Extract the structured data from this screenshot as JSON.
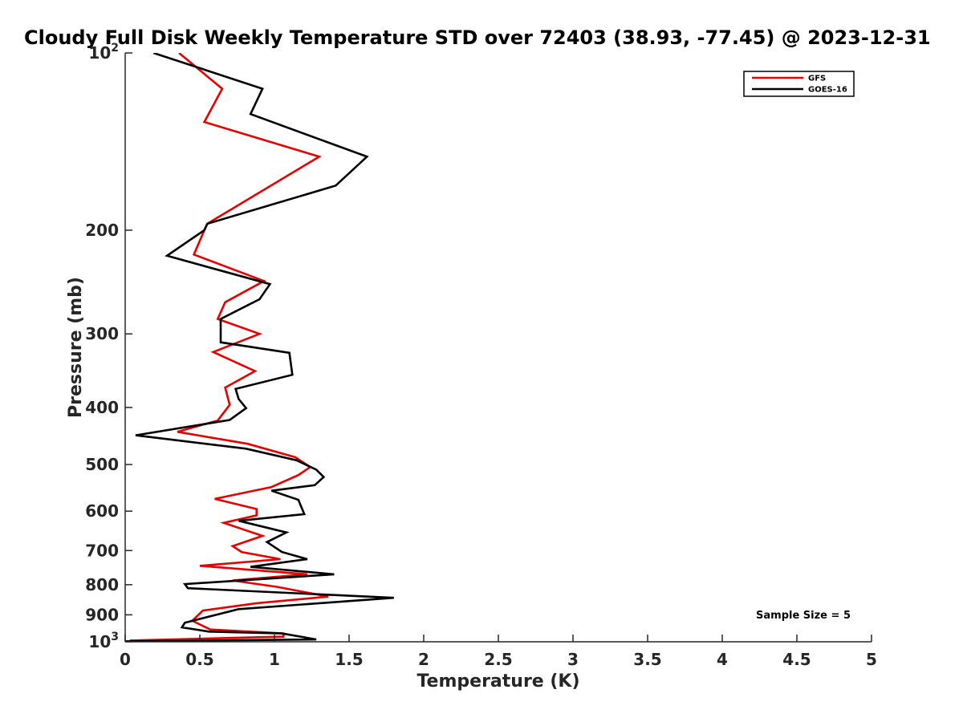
{
  "chart_data": {
    "type": "line",
    "title": "Cloudy Full Disk Weekly Temperature STD over 72403 (38.93, -77.45) @ 2023-12-31",
    "xlabel": "Temperature (K)",
    "ylabel": "Pressure (mb)",
    "xlim": [
      0,
      5
    ],
    "ylim": [
      1000,
      100
    ],
    "yscale": "log",
    "y_reversed": true,
    "grid": false,
    "legend_position": "top-right",
    "xticks": [
      0,
      0.5,
      1,
      1.5,
      2,
      2.5,
      3,
      3.5,
      4,
      4.5,
      5
    ],
    "xtick_labels": [
      "0",
      "0.5",
      "1",
      "1.5",
      "2",
      "2.5",
      "3",
      "3.5",
      "4",
      "4.5",
      "5"
    ],
    "yticks": [
      {
        "value": 100,
        "base": "10",
        "exp": "2"
      },
      {
        "value": 200,
        "label": "200"
      },
      {
        "value": 300,
        "label": "300"
      },
      {
        "value": 400,
        "label": "400"
      },
      {
        "value": 500,
        "label": "500"
      },
      {
        "value": 600,
        "label": "600"
      },
      {
        "value": 700,
        "label": "700"
      },
      {
        "value": 800,
        "label": "800"
      },
      {
        "value": 900,
        "label": "900"
      },
      {
        "value": 1000,
        "base": "10",
        "exp": "3"
      }
    ],
    "annotation": "Sample Size = 5",
    "series": [
      {
        "name": "GFS",
        "color": "#e60000",
        "points": [
          [
            0.36,
            100
          ],
          [
            0.65,
            115
          ],
          [
            0.53,
            131
          ],
          [
            1.3,
            150
          ],
          [
            0.55,
            195
          ],
          [
            0.53,
            200
          ],
          [
            0.46,
            220
          ],
          [
            0.93,
            244
          ],
          [
            0.67,
            265
          ],
          [
            0.62,
            283
          ],
          [
            0.9,
            300
          ],
          [
            0.59,
            322
          ],
          [
            0.87,
            347
          ],
          [
            0.67,
            370
          ],
          [
            0.7,
            396
          ],
          [
            0.62,
            421
          ],
          [
            0.35,
            440
          ],
          [
            0.82,
            461
          ],
          [
            1.14,
            486
          ],
          [
            1.24,
            505
          ],
          [
            1.16,
            521
          ],
          [
            0.98,
            546
          ],
          [
            0.6,
            572
          ],
          [
            0.88,
            595
          ],
          [
            0.88,
            610
          ],
          [
            0.66,
            628
          ],
          [
            0.92,
            661
          ],
          [
            0.72,
            688
          ],
          [
            0.78,
            704
          ],
          [
            1.04,
            724
          ],
          [
            0.5,
            743
          ],
          [
            1.22,
            768
          ],
          [
            0.72,
            787
          ],
          [
            1.02,
            807
          ],
          [
            1.36,
            838
          ],
          [
            0.88,
            860
          ],
          [
            0.52,
            885
          ],
          [
            0.45,
            921
          ],
          [
            0.57,
            953
          ],
          [
            1.06,
            968
          ],
          [
            1.06,
            980
          ],
          [
            0.03,
            995
          ]
        ]
      },
      {
        "name": "GOES-16",
        "color": "#000000",
        "points": [
          [
            0.19,
            100
          ],
          [
            0.92,
            115
          ],
          [
            0.84,
            127
          ],
          [
            1.62,
            150
          ],
          [
            1.41,
            168
          ],
          [
            0.55,
            195
          ],
          [
            0.53,
            200
          ],
          [
            0.28,
            221
          ],
          [
            0.97,
            247
          ],
          [
            0.9,
            262
          ],
          [
            0.64,
            283
          ],
          [
            0.64,
            310
          ],
          [
            1.1,
            323
          ],
          [
            1.12,
            352
          ],
          [
            0.74,
            372
          ],
          [
            0.76,
            387
          ],
          [
            0.81,
            401
          ],
          [
            0.7,
            420
          ],
          [
            0.07,
            446
          ],
          [
            0.81,
            470
          ],
          [
            1.15,
            492
          ],
          [
            1.28,
            510
          ],
          [
            1.33,
            525
          ],
          [
            1.27,
            542
          ],
          [
            0.98,
            554
          ],
          [
            1.16,
            574
          ],
          [
            1.2,
            607
          ],
          [
            0.76,
            623
          ],
          [
            1.08,
            652
          ],
          [
            0.95,
            677
          ],
          [
            1.05,
            704
          ],
          [
            1.22,
            724
          ],
          [
            0.84,
            746
          ],
          [
            1.4,
            768
          ],
          [
            0.4,
            798
          ],
          [
            0.42,
            811
          ],
          [
            1.8,
            842
          ],
          [
            0.76,
            880
          ],
          [
            0.4,
            928
          ],
          [
            0.38,
            945
          ],
          [
            0.56,
            961
          ],
          [
            1.05,
            968
          ],
          [
            1.28,
            991
          ],
          [
            0.0,
            998
          ]
        ]
      }
    ]
  }
}
